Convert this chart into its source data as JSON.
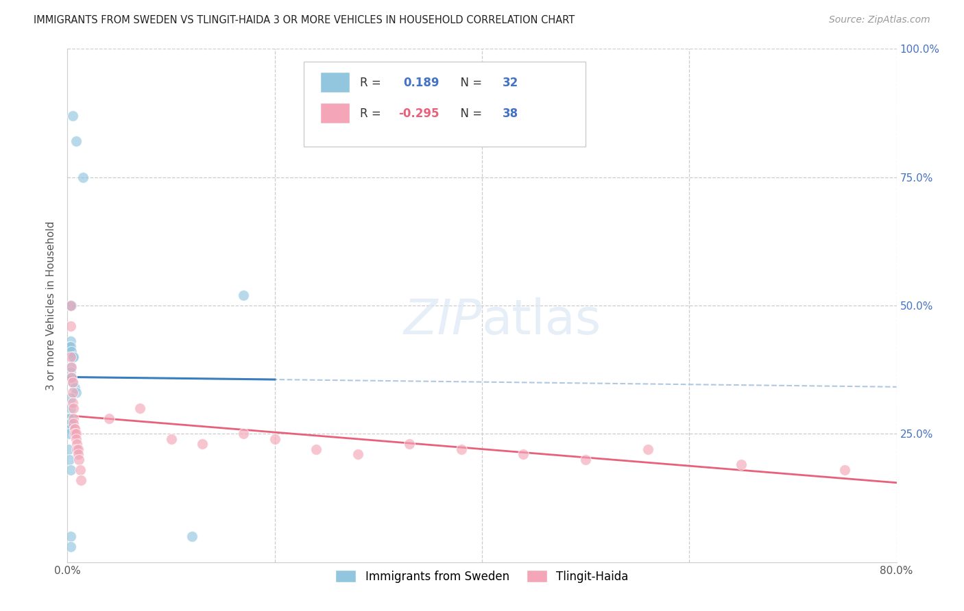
{
  "title": "IMMIGRANTS FROM SWEDEN VS TLINGIT-HAIDA 3 OR MORE VEHICLES IN HOUSEHOLD CORRELATION CHART",
  "source": "Source: ZipAtlas.com",
  "ylabel": "3 or more Vehicles in Household",
  "xlim": [
    0.0,
    0.8
  ],
  "ylim": [
    0.0,
    1.0
  ],
  "blue_color": "#92c5de",
  "pink_color": "#f4a6b8",
  "blue_line_color": "#3a7ebf",
  "pink_line_color": "#e8607a",
  "dashed_line_color": "#b0c8e0",
  "background_color": "#ffffff",
  "sweden_x": [
    0.005,
    0.008,
    0.015,
    0.003,
    0.004,
    0.003,
    0.002,
    0.003,
    0.004,
    0.005,
    0.006,
    0.003,
    0.003,
    0.004,
    0.005,
    0.007,
    0.008,
    0.003,
    0.003,
    0.004,
    0.002,
    0.002,
    0.003,
    0.003,
    0.002,
    0.001,
    0.002,
    0.003,
    0.17,
    0.003,
    0.003,
    0.12
  ],
  "sweden_y": [
    0.87,
    0.82,
    0.75,
    0.5,
    0.5,
    0.43,
    0.42,
    0.42,
    0.41,
    0.4,
    0.4,
    0.38,
    0.37,
    0.36,
    0.35,
    0.34,
    0.33,
    0.32,
    0.3,
    0.28,
    0.28,
    0.27,
    0.27,
    0.26,
    0.25,
    0.22,
    0.2,
    0.18,
    0.52,
    0.05,
    0.03,
    0.05
  ],
  "tlingit_x": [
    0.003,
    0.003,
    0.003,
    0.004,
    0.004,
    0.005,
    0.005,
    0.005,
    0.006,
    0.006,
    0.006,
    0.007,
    0.007,
    0.007,
    0.008,
    0.008,
    0.009,
    0.009,
    0.01,
    0.01,
    0.011,
    0.012,
    0.013,
    0.04,
    0.07,
    0.1,
    0.13,
    0.17,
    0.2,
    0.24,
    0.28,
    0.33,
    0.38,
    0.44,
    0.5,
    0.56,
    0.65,
    0.75
  ],
  "tlingit_y": [
    0.5,
    0.46,
    0.4,
    0.38,
    0.36,
    0.35,
    0.33,
    0.31,
    0.3,
    0.28,
    0.27,
    0.26,
    0.26,
    0.25,
    0.25,
    0.24,
    0.23,
    0.22,
    0.22,
    0.21,
    0.2,
    0.18,
    0.16,
    0.28,
    0.3,
    0.24,
    0.23,
    0.25,
    0.24,
    0.22,
    0.21,
    0.23,
    0.22,
    0.21,
    0.2,
    0.22,
    0.19,
    0.18
  ]
}
